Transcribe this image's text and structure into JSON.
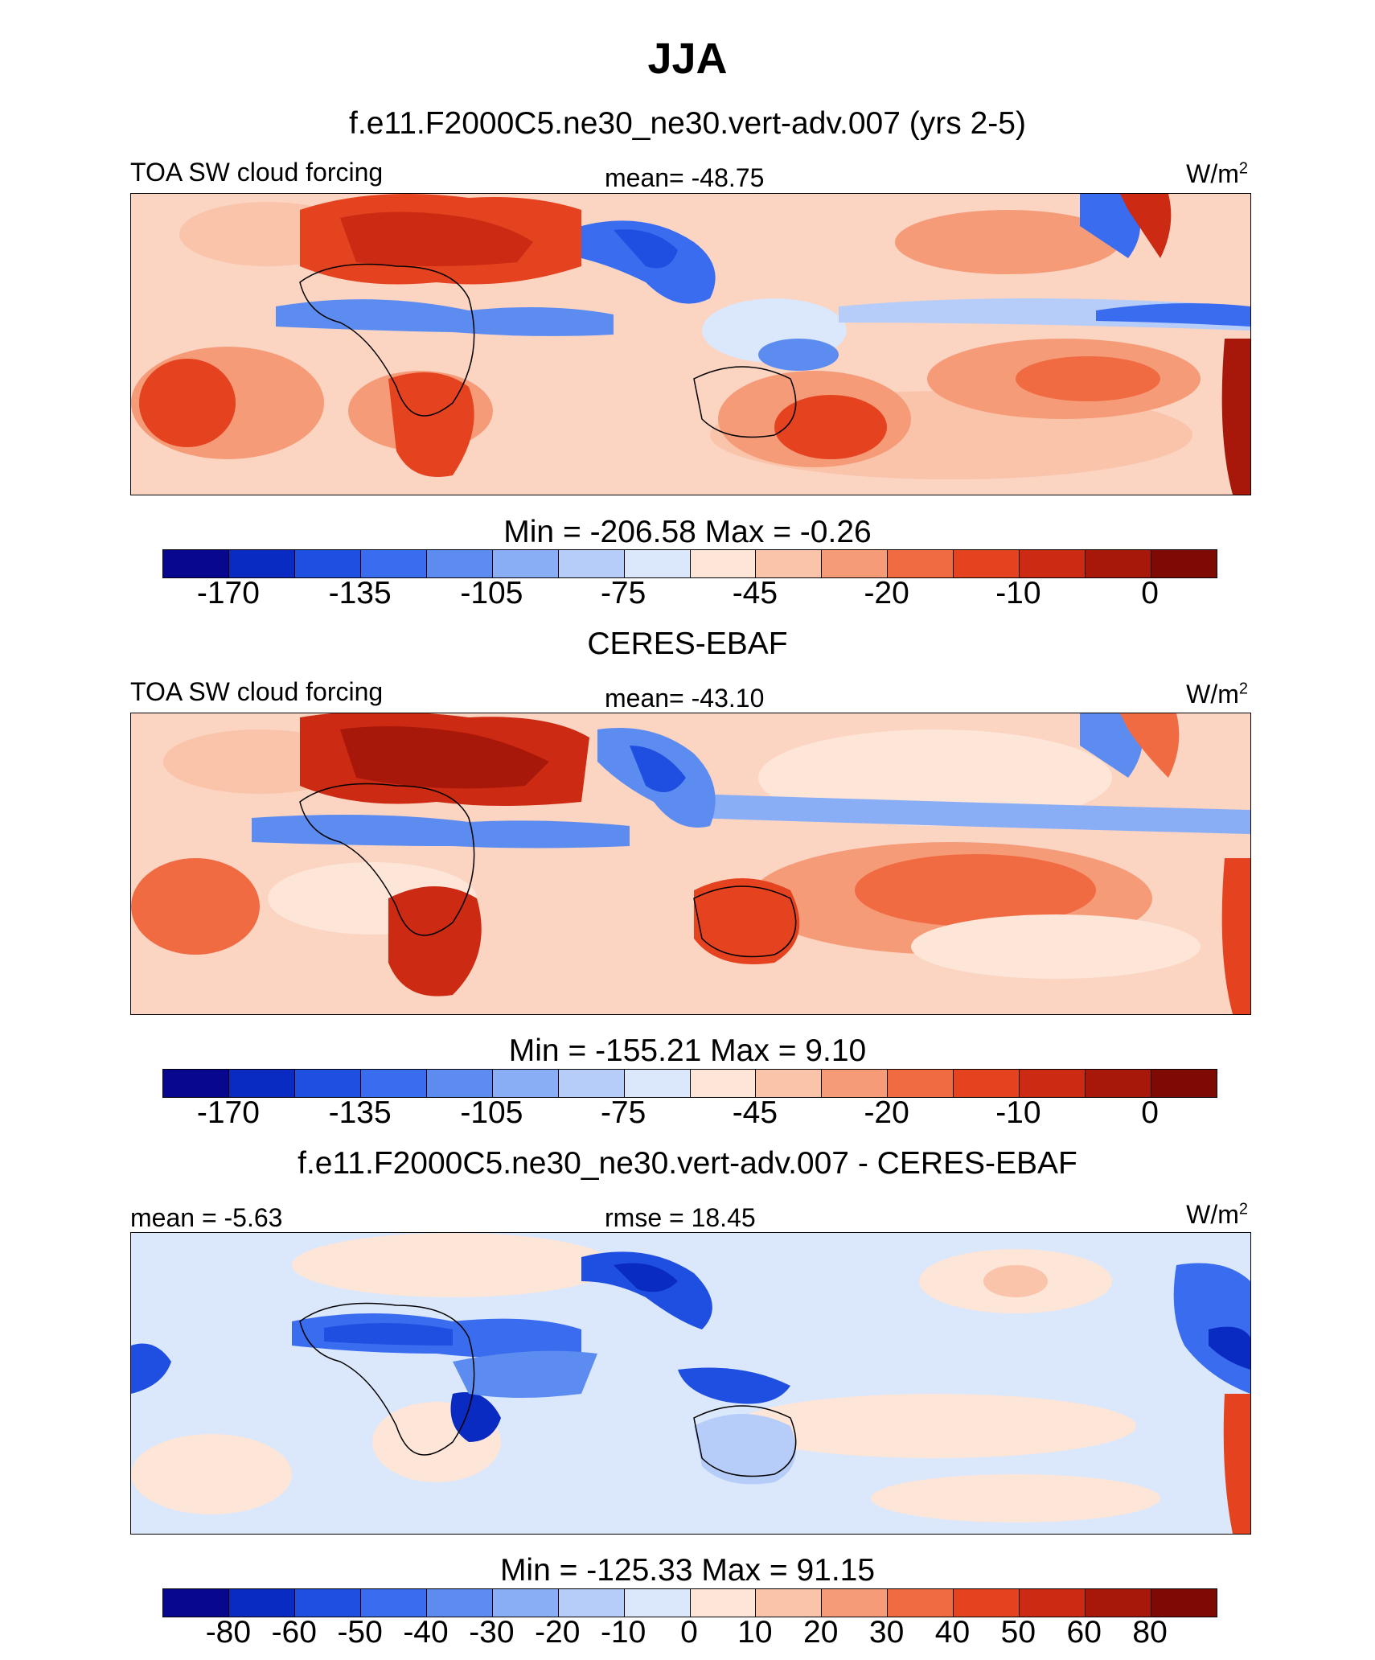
{
  "figure": {
    "title": "JJA"
  },
  "panels": [
    {
      "title": "f.e11.F2000C5.ne30_ne30.vert-adv.007 (yrs 2-5)",
      "left_label": "TOA SW cloud forcing",
      "center_label": "mean= -48.75",
      "units": "W/m",
      "units_sup": "2",
      "minmax": "Min = -206.58 Max =  -0.26",
      "colorbar_ticks": [
        "-170",
        "-135",
        "-105",
        "-75",
        "-45",
        "-20",
        "-10",
        "0"
      ]
    },
    {
      "title": "CERES-EBAF",
      "left_label": "TOA SW cloud forcing",
      "center_label": "mean= -43.10",
      "units": "W/m",
      "units_sup": "2",
      "minmax": "Min = -155.21 Max =   9.10",
      "colorbar_ticks": [
        "-170",
        "-135",
        "-105",
        "-75",
        "-45",
        "-20",
        "-10",
        "0"
      ]
    },
    {
      "title": "f.e11.F2000C5.ne30_ne30.vert-adv.007 - CERES-EBAF",
      "left_label": "mean =  -5.63",
      "center_label": "rmse =  18.45",
      "units": "W/m",
      "units_sup": "2",
      "minmax": "Min = -125.33 Max =  91.15",
      "colorbar_ticks": [
        "-80",
        "-60",
        "-50",
        "-40",
        "-30",
        "-20",
        "-10",
        "0",
        "10",
        "20",
        "30",
        "40",
        "50",
        "60",
        "80"
      ]
    }
  ],
  "colors": {
    "palette": [
      "#08088f",
      "#0a2bc2",
      "#1f4fe0",
      "#3a6cf0",
      "#5d8cf0",
      "#89aef5",
      "#b5cdf8",
      "#dbe7fb",
      "#fde5d8",
      "#f9c4aa",
      "#f59b78",
      "#f06a42",
      "#e5421f",
      "#cc2a12",
      "#a8180a",
      "#7e0a04"
    ],
    "map_background": "#fde3d6",
    "coastline": "#000000"
  },
  "chart_data": [
    {
      "type": "heatmap",
      "map_type": "global filled contour map (Atlantic-centred)",
      "title": "f.e11.F2000C5.ne30_ne30.vert-adv.007 (yrs 2-5)",
      "variable": "TOA SW cloud forcing",
      "units": "W/m2",
      "mean": -48.75,
      "min": -206.58,
      "max": -0.26,
      "colorbar_ticks": [
        -170,
        -135,
        -105,
        -75,
        -45,
        -20,
        -10,
        0
      ]
    },
    {
      "type": "heatmap",
      "map_type": "global filled contour map (Atlantic-centred)",
      "title": "CERES-EBAF",
      "variable": "TOA SW cloud forcing",
      "units": "W/m2",
      "mean": -43.1,
      "min": -155.21,
      "max": 9.1,
      "colorbar_ticks": [
        -170,
        -135,
        -105,
        -75,
        -45,
        -20,
        -10,
        0
      ]
    },
    {
      "type": "heatmap",
      "map_type": "global filled contour map (Atlantic-centred), difference",
      "title": "f.e11.F2000C5.ne30_ne30.vert-adv.007 - CERES-EBAF",
      "units": "W/m2",
      "mean": -5.63,
      "rmse": 18.45,
      "min": -125.33,
      "max": 91.15,
      "colorbar_ticks": [
        -80,
        -60,
        -50,
        -40,
        -30,
        -20,
        -10,
        0,
        10,
        20,
        30,
        40,
        50,
        60,
        80
      ]
    }
  ]
}
